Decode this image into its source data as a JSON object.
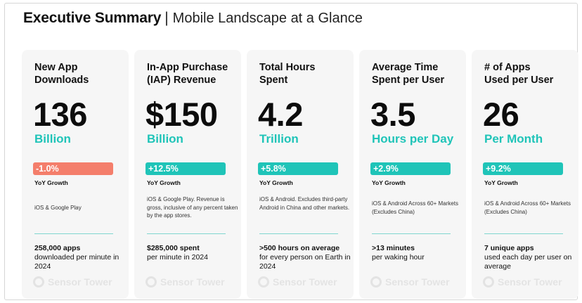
{
  "header": {
    "title": "Executive Summary",
    "separator": "|",
    "subtitle": "Mobile Landscape at a Glance"
  },
  "colors": {
    "accent": "#1fc4b8",
    "positive_badge": "#1fc4b8",
    "negative_badge": "#f47e6b",
    "card_background": "#f6f6f6"
  },
  "watermark": {
    "text": "Sensor Tower",
    "icon": "sensor-tower-logo-icon"
  },
  "cards": [
    {
      "title": "New App Downloads",
      "value": "136",
      "unit": "Billion",
      "growth": "-1.0%",
      "growth_direction": "negative",
      "growth_label": "YoY Growth",
      "note": "iOS & Google Play",
      "footer_bold": "258,000 apps",
      "footer_text": "downloaded per minute in 2024"
    },
    {
      "title": "In-App Purchase (IAP) Revenue",
      "value": "$150",
      "unit": "Billion",
      "growth": "+12.5%",
      "growth_direction": "positive",
      "growth_label": "YoY Growth",
      "note": "iOS & Google Play. Revenue is gross, inclusive of any percent taken by the app stores.",
      "footer_bold": "$285,000 spent",
      "footer_text": "per minute in 2024"
    },
    {
      "title": "Total Hours Spent",
      "value": "4.2",
      "unit": "Trillion",
      "growth": "+5.8%",
      "growth_direction": "positive",
      "growth_label": "YoY Growth",
      "note": "iOS & Android. Excludes third-party Android in China and other markets.",
      "footer_bold": ">500 hours on average",
      "footer_text": "for every person on Earth in 2024"
    },
    {
      "title": "Average Time Spent per User",
      "value": "3.5",
      "unit": "Hours per Day",
      "growth": "+2.9%",
      "growth_direction": "positive",
      "growth_label": "YoY Growth",
      "note": "iOS & Android Across 60+ Markets (Excludes China)",
      "footer_bold": ">13 minutes",
      "footer_text": "per waking hour"
    },
    {
      "title": "# of Apps Used per User",
      "value": "26",
      "unit": "Per Month",
      "growth": "+9.2%",
      "growth_direction": "positive",
      "growth_label": "YoY Growth",
      "note": "iOS & Android Across 60+ Markets (Excludes China)",
      "footer_bold": "7 unique apps",
      "footer_text": "used each day per user on average"
    }
  ]
}
